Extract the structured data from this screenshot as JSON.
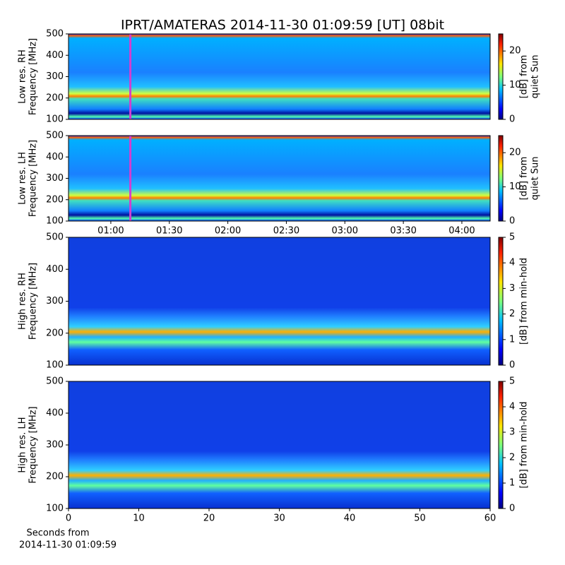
{
  "title": "IPRT/AMATERAS 2014-11-30 01:09:59 [UT]   08bit",
  "chart_data": [
    {
      "type": "heatmap",
      "ylabel": [
        "Low res. RH",
        "Frequency [MHz]"
      ],
      "ylim": [
        100,
        500
      ],
      "yticks": [
        100,
        200,
        300,
        400,
        500
      ],
      "xlim": [
        38.3,
        254.5
      ],
      "marker_x": 70,
      "marker_color": "#d040d0",
      "colormap": "jet",
      "clim": [
        0,
        25
      ],
      "cticks": [
        0,
        10,
        20
      ],
      "colorbar_label": [
        "[dB] from",
        "quiet Sun"
      ]
    },
    {
      "type": "heatmap",
      "ylabel": [
        "Low res. LH",
        "Frequency [MHz]"
      ],
      "ylim": [
        100,
        500
      ],
      "yticks": [
        100,
        200,
        300,
        400,
        500
      ],
      "xlim": [
        38.3,
        254.5
      ],
      "marker_x": 70,
      "marker_color": "#d040d0",
      "xticks": [
        {
          "value": 60,
          "label": "01:00"
        },
        {
          "value": 90,
          "label": "01:30"
        },
        {
          "value": 120,
          "label": "02:00"
        },
        {
          "value": 150,
          "label": "02:30"
        },
        {
          "value": 180,
          "label": "03:00"
        },
        {
          "value": 210,
          "label": "03:30"
        },
        {
          "value": 240,
          "label": "04:00"
        }
      ],
      "colormap": "jet",
      "clim": [
        0,
        25
      ],
      "cticks": [
        0,
        10,
        20
      ],
      "colorbar_label": [
        "[dB] from",
        "quiet Sun"
      ]
    },
    {
      "type": "heatmap",
      "ylabel": [
        "High res. RH",
        "Frequency [MHz]"
      ],
      "ylim": [
        100,
        500
      ],
      "yticks": [
        100,
        200,
        300,
        400,
        500
      ],
      "xlim": [
        0,
        60
      ],
      "colormap": "jet",
      "clim": [
        0,
        5
      ],
      "cticks": [
        0,
        1,
        2,
        3,
        4,
        5
      ],
      "colorbar_label": [
        "[dB] from min-hold"
      ]
    },
    {
      "type": "heatmap",
      "ylabel": [
        "High res. LH",
        "Frequency [MHz]"
      ],
      "ylim": [
        100,
        500
      ],
      "yticks": [
        100,
        200,
        300,
        400,
        500
      ],
      "xlim": [
        0,
        60
      ],
      "xticks": [
        0,
        10,
        20,
        30,
        40,
        50,
        60
      ],
      "xlabel": [
        "Seconds from",
        "2014-11-30 01:09:59"
      ],
      "colormap": "jet",
      "clim": [
        0,
        5
      ],
      "cticks": [
        0,
        1,
        2,
        3,
        4,
        5
      ],
      "colorbar_label": [
        "[dB] from min-hold"
      ]
    }
  ]
}
